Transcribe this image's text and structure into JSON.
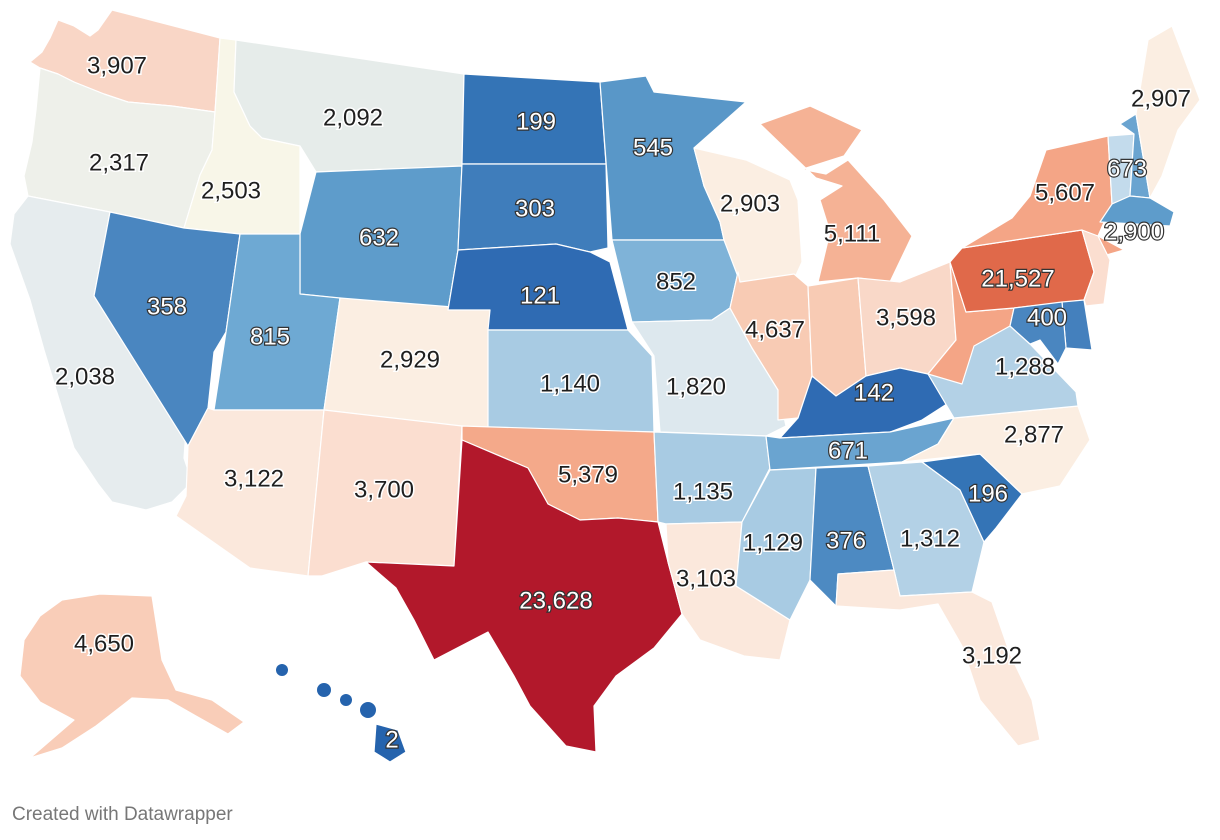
{
  "credit": "Created with Datawrapper",
  "colors": {
    "lowest": "#2f6bb3",
    "low": "#5b9bcb",
    "mid_low": "#aacde3",
    "neutral": "#e6ecee",
    "mid_high": "#f8dfcf",
    "high": "#f4a98a",
    "very_high": "#e0694a",
    "highest": "#b2182b"
  },
  "regions": [
    {
      "id": "WA",
      "value": "3,907",
      "fill": "#f9d6c6"
    },
    {
      "id": "OR",
      "value": "2,317",
      "fill": "#eef0ea"
    },
    {
      "id": "CA",
      "value": "2,038",
      "fill": "#e6ecee"
    },
    {
      "id": "ID",
      "value": "2,503",
      "fill": "#f8f6e8"
    },
    {
      "id": "NV",
      "value": "358",
      "fill": "#4a86c0"
    },
    {
      "id": "MT",
      "value": "2,092",
      "fill": "#e6ecea"
    },
    {
      "id": "WY",
      "value": "632",
      "fill": "#5e9ccb"
    },
    {
      "id": "UT",
      "value": "815",
      "fill": "#6ea9d3"
    },
    {
      "id": "AZ",
      "value": "3,122",
      "fill": "#fbe8dc"
    },
    {
      "id": "CO",
      "value": "2,929",
      "fill": "#fbeee2"
    },
    {
      "id": "NM",
      "value": "3,700",
      "fill": "#fbded0"
    },
    {
      "id": "ND",
      "value": "199",
      "fill": "#3474b6"
    },
    {
      "id": "SD",
      "value": "303",
      "fill": "#3f7dbb"
    },
    {
      "id": "NE",
      "value": "121",
      "fill": "#2f6bb3"
    },
    {
      "id": "KS",
      "value": "1,140",
      "fill": "#a8cbe3"
    },
    {
      "id": "OK",
      "value": "5,379",
      "fill": "#f4a98a"
    },
    {
      "id": "TX",
      "value": "23,628",
      "fill": "#b2182b"
    },
    {
      "id": "MN",
      "value": "545",
      "fill": "#5997c8"
    },
    {
      "id": "IA",
      "value": "852",
      "fill": "#7fb3d8"
    },
    {
      "id": "MO",
      "value": "1,820",
      "fill": "#dde8ee"
    },
    {
      "id": "AR",
      "value": "1,135",
      "fill": "#a8cbe3"
    },
    {
      "id": "LA",
      "value": "3,103",
      "fill": "#fbe8dc"
    },
    {
      "id": "WI",
      "value": "2,903",
      "fill": "#fbeee2"
    },
    {
      "id": "IL",
      "value": "4,637",
      "fill": "#f8cbb4"
    },
    {
      "id": "MI",
      "value": "5,111",
      "fill": "#f5b295"
    },
    {
      "id": "IN",
      "value": "",
      "fill": "#f8cbb4"
    },
    {
      "id": "OH",
      "value": "3,598",
      "fill": "#f9d8c8"
    },
    {
      "id": "KY",
      "value": "142",
      "fill": "#2f6bb3"
    },
    {
      "id": "TN",
      "value": "671",
      "fill": "#6aa4d0"
    },
    {
      "id": "MS",
      "value": "1,129",
      "fill": "#a8cbe3"
    },
    {
      "id": "AL",
      "value": "376",
      "fill": "#4d8ac2"
    },
    {
      "id": "GA",
      "value": "1,312",
      "fill": "#b3d1e6"
    },
    {
      "id": "FL",
      "value": "3,192",
      "fill": "#fbe8dc"
    },
    {
      "id": "SC",
      "value": "196",
      "fill": "#3474b6"
    },
    {
      "id": "NC",
      "value": "2,877",
      "fill": "#fbeee2"
    },
    {
      "id": "VA",
      "value": "1,288",
      "fill": "#b3d1e6"
    },
    {
      "id": "WV",
      "value": "",
      "fill": "#f4a586"
    },
    {
      "id": "PA",
      "value": "21,527",
      "fill": "#e0694a"
    },
    {
      "id": "NY",
      "value": "5,607",
      "fill": "#f4a586"
    },
    {
      "id": "VT",
      "value": "",
      "fill": "#c3dbec"
    },
    {
      "id": "NH",
      "value": "673",
      "fill": "#6aa4d0"
    },
    {
      "id": "ME",
      "value": "2,907",
      "fill": "#fbeee2"
    },
    {
      "id": "MA",
      "value": "2,900",
      "fill": "#5e9ccb"
    },
    {
      "id": "NJ",
      "value": "",
      "fill": "#fbded0"
    },
    {
      "id": "DE",
      "value": "400",
      "fill": "#4480bd"
    },
    {
      "id": "MD",
      "value": "",
      "fill": "#4a86c0"
    },
    {
      "id": "AK",
      "value": "4,650",
      "fill": "#f9cdb8"
    },
    {
      "id": "HI",
      "value": "2",
      "fill": "#2563ad"
    }
  ]
}
